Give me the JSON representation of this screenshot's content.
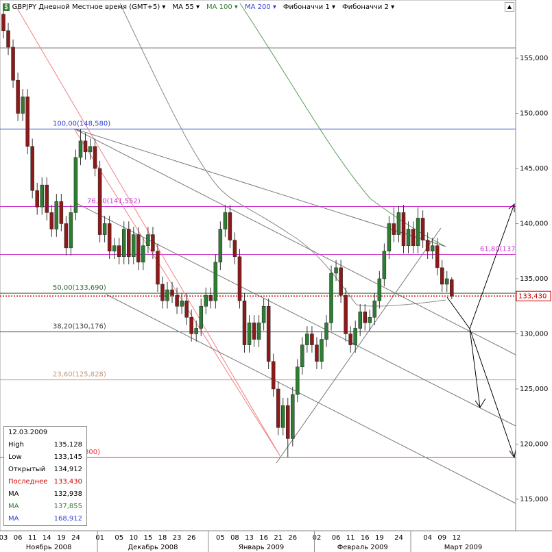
{
  "header": {
    "symbol": "GBPJPY Дневной Местное время (GMT+5)",
    "indicators": [
      "MA 55",
      "MA 100",
      "MA 200",
      "Фибоначчи 1",
      "Фибоначчи 2"
    ]
  },
  "chart_data": {
    "type": "candlestick",
    "categories": [
      "03",
      null,
      null,
      "06",
      null,
      null,
      "11",
      null,
      null,
      "14",
      null,
      null,
      "19",
      null,
      null,
      "24",
      null,
      null,
      null,
      null,
      "01",
      null,
      null,
      null,
      "05",
      null,
      null,
      "10",
      null,
      null,
      "15",
      null,
      null,
      "18",
      null,
      null,
      "23",
      null,
      null,
      "26",
      null,
      null,
      null,
      null,
      null,
      "05",
      null,
      null,
      "08",
      null,
      null,
      "13",
      null,
      null,
      "16",
      null,
      null,
      "21",
      null,
      null,
      "26",
      null,
      null,
      null,
      null,
      "02",
      null,
      null,
      null,
      "06",
      null,
      null,
      "11",
      null,
      null,
      "16",
      null,
      null,
      "19",
      null,
      null,
      null,
      "24",
      null,
      null,
      null,
      null,
      null,
      "04",
      null,
      null,
      "09",
      null,
      null,
      "12"
    ],
    "months": [
      "Ноябрь 2008",
      "Декабрь 2008",
      "Январь 2009",
      "Февраль 2009",
      "Март 2009"
    ],
    "up_color": "#2e7d32",
    "down_color": "#8b1a1a",
    "ohlc": [
      [
        159.0,
        159.7,
        156.8,
        157.5
      ],
      [
        157.5,
        158.2,
        155.3,
        156.0
      ],
      [
        156.0,
        156.7,
        152.3,
        153.0
      ],
      [
        153.0,
        153.7,
        149.3,
        150.0
      ],
      [
        150.0,
        152.2,
        149.3,
        151.5
      ],
      [
        151.5,
        152.2,
        146.3,
        147.0
      ],
      [
        147.0,
        147.7,
        142.3,
        143.0
      ],
      [
        143.0,
        143.7,
        140.8,
        141.5
      ],
      [
        141.5,
        144.2,
        140.8,
        143.5
      ],
      [
        143.5,
        144.2,
        140.3,
        141.0
      ],
      [
        141.0,
        141.7,
        138.8,
        139.5
      ],
      [
        139.5,
        142.7,
        138.8,
        142.0
      ],
      [
        142.0,
        142.7,
        139.3,
        140.0
      ],
      [
        140.0,
        140.7,
        137.1,
        137.8
      ],
      [
        137.8,
        141.7,
        137.1,
        141.0
      ],
      [
        141.0,
        146.7,
        140.3,
        146.0
      ],
      [
        146.0,
        148.58,
        145.3,
        147.5
      ],
      [
        147.5,
        148.2,
        145.8,
        146.5
      ],
      [
        146.5,
        147.7,
        145.8,
        147.0
      ],
      [
        147.0,
        147.7,
        144.3,
        145.0
      ],
      [
        145.0,
        145.7,
        138.3,
        139.0
      ],
      [
        139.0,
        140.7,
        138.3,
        140.0
      ],
      [
        140.0,
        140.7,
        136.8,
        137.5
      ],
      [
        137.5,
        138.7,
        136.8,
        138.0
      ],
      [
        138.0,
        138.7,
        136.3,
        137.0
      ],
      [
        137.0,
        140.2,
        136.3,
        139.5
      ],
      [
        139.5,
        140.2,
        136.3,
        137.0
      ],
      [
        137.0,
        139.7,
        136.3,
        139.0
      ],
      [
        139.0,
        139.7,
        135.8,
        136.5
      ],
      [
        136.5,
        138.7,
        135.8,
        138.0
      ],
      [
        138.0,
        139.7,
        137.3,
        139.0
      ],
      [
        139.0,
        139.7,
        136.8,
        137.5
      ],
      [
        137.5,
        138.2,
        133.8,
        134.5
      ],
      [
        134.5,
        135.2,
        132.3,
        133.0
      ],
      [
        133.0,
        134.7,
        132.3,
        134.0
      ],
      [
        134.0,
        134.7,
        132.8,
        133.5
      ],
      [
        133.5,
        134.2,
        131.8,
        132.5
      ],
      [
        132.5,
        133.7,
        131.8,
        133.0
      ],
      [
        133.0,
        133.7,
        130.8,
        131.5
      ],
      [
        131.5,
        132.2,
        129.3,
        130.0
      ],
      [
        130.0,
        131.2,
        129.3,
        130.5
      ],
      [
        130.5,
        133.2,
        129.8,
        132.5
      ],
      [
        132.5,
        134.2,
        131.8,
        133.5
      ],
      [
        133.5,
        134.2,
        132.3,
        133.0
      ],
      [
        133.0,
        137.2,
        132.3,
        136.5
      ],
      [
        136.5,
        140.2,
        135.8,
        139.5
      ],
      [
        139.5,
        141.7,
        138.8,
        141.0
      ],
      [
        141.0,
        141.7,
        137.8,
        138.5
      ],
      [
        138.5,
        139.2,
        136.3,
        137.0
      ],
      [
        137.0,
        137.7,
        132.3,
        133.0
      ],
      [
        133.0,
        133.7,
        128.3,
        129.0
      ],
      [
        129.0,
        131.7,
        128.3,
        131.0
      ],
      [
        131.0,
        131.7,
        128.8,
        129.5
      ],
      [
        129.5,
        131.7,
        128.8,
        131.0
      ],
      [
        131.0,
        133.2,
        130.3,
        132.5
      ],
      [
        132.5,
        133.2,
        126.8,
        127.5
      ],
      [
        127.5,
        128.2,
        124.3,
        125.0
      ],
      [
        125.0,
        125.7,
        120.8,
        121.5
      ],
      [
        121.5,
        124.2,
        120.8,
        123.5
      ],
      [
        123.5,
        124.2,
        118.8,
        120.5
      ],
      [
        120.5,
        125.2,
        119.8,
        124.5
      ],
      [
        124.5,
        127.7,
        123.8,
        127.0
      ],
      [
        127.0,
        129.7,
        126.3,
        129.0
      ],
      [
        129.0,
        130.7,
        128.3,
        130.0
      ],
      [
        130.0,
        130.7,
        128.3,
        129.0
      ],
      [
        129.0,
        129.7,
        126.8,
        127.5
      ],
      [
        127.5,
        130.2,
        126.8,
        129.5
      ],
      [
        129.5,
        131.7,
        128.8,
        131.0
      ],
      [
        131.0,
        136.2,
        130.3,
        135.5
      ],
      [
        135.5,
        136.7,
        134.8,
        136.0
      ],
      [
        136.0,
        136.7,
        132.8,
        133.5
      ],
      [
        133.5,
        134.2,
        129.3,
        130.0
      ],
      [
        130.0,
        130.7,
        128.3,
        129.0
      ],
      [
        129.0,
        131.2,
        128.3,
        130.5
      ],
      [
        130.5,
        132.7,
        129.8,
        132.0
      ],
      [
        132.0,
        132.7,
        130.3,
        131.0
      ],
      [
        131.0,
        132.2,
        130.3,
        131.5
      ],
      [
        131.5,
        133.7,
        130.8,
        133.0
      ],
      [
        133.0,
        135.7,
        132.3,
        135.0
      ],
      [
        135.0,
        138.2,
        134.3,
        137.5
      ],
      [
        137.5,
        140.7,
        136.8,
        140.0
      ],
      [
        140.0,
        141.5,
        138.3,
        139.0
      ],
      [
        139.0,
        141.6,
        138.3,
        141.0
      ],
      [
        141.0,
        141.7,
        137.3,
        138.0
      ],
      [
        138.0,
        140.2,
        137.3,
        139.5
      ],
      [
        139.5,
        140.2,
        137.3,
        138.0
      ],
      [
        138.0,
        141.5,
        137.3,
        140.5
      ],
      [
        140.5,
        141.2,
        137.8,
        138.5
      ],
      [
        138.5,
        139.2,
        136.8,
        137.5
      ],
      [
        137.5,
        138.7,
        136.8,
        138.0
      ],
      [
        138.0,
        138.7,
        135.3,
        136.0
      ],
      [
        136.0,
        136.7,
        133.8,
        134.5
      ],
      [
        134.5,
        135.7,
        133.8,
        135.0
      ],
      [
        134.912,
        135.128,
        133.145,
        133.43
      ]
    ],
    "ylim": [
      112.14,
      160.28
    ],
    "yticks": [
      {
        "value": 115,
        "label": "115,000"
      },
      {
        "value": 120,
        "label": "120,000"
      },
      {
        "value": 125,
        "label": "125,000"
      },
      {
        "value": 130,
        "label": "130,000"
      },
      {
        "value": 135,
        "label": "135,000"
      },
      {
        "value": 140,
        "label": "140,000"
      },
      {
        "value": 145,
        "label": "145,000"
      },
      {
        "value": 150,
        "label": "150,000"
      },
      {
        "value": 155,
        "label": "155,000"
      }
    ],
    "levels": [
      {
        "value": 155.93,
        "color": "#777777"
      },
      {
        "label": "100,00(148,580)",
        "value": 148.58,
        "color": "#3344cc"
      },
      {
        "label": "76,40(141,552)",
        "value": 141.552,
        "color": "#cc33cc"
      },
      {
        "label": "61,80(137",
        "value": 137.2,
        "color": "#cc33cc"
      },
      {
        "label": "50,00(133,690)",
        "value": 133.69,
        "color": "#336633"
      },
      {
        "label": "38,20(130,176)",
        "value": 130.176,
        "color": "#444444"
      },
      {
        "label": "23,60(125,828)",
        "value": 125.828,
        "color": "#c89a7a"
      },
      {
        "label": "800)",
        "value": 118.8,
        "color": "#dd3333"
      }
    ],
    "last_price": {
      "value": 133.43,
      "label": "133,430",
      "color": "#cc0000"
    }
  },
  "info_box": {
    "date": "12.03.2009",
    "rows": [
      [
        "High",
        "135,128"
      ],
      [
        "Low",
        "133,145"
      ],
      [
        "Открытый",
        "134,912"
      ],
      [
        "Последнее",
        "133,430"
      ],
      [
        "MA",
        "132,938"
      ],
      [
        "MA",
        "137,855"
      ],
      [
        "MA",
        "168,912"
      ]
    ]
  }
}
